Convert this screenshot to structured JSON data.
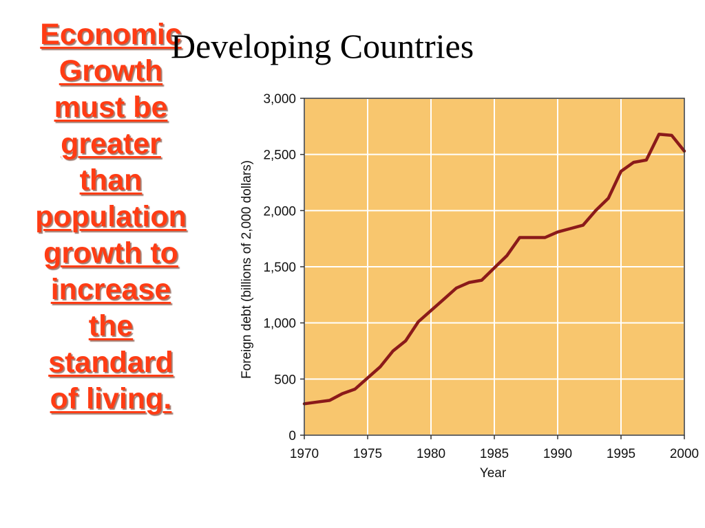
{
  "slide": {
    "title": "Developing Countries",
    "side_lines": [
      "Economic",
      "Growth",
      "must  be",
      "greater",
      "than",
      "population",
      "growth to",
      "increase",
      "the",
      "standard",
      "of living."
    ],
    "side_text_color": "#ff3c14"
  },
  "chart_data": {
    "type": "line",
    "title": "",
    "xlabel": "Year",
    "ylabel": "Foreign debt (billions of 2,000 dollars)",
    "xlim": [
      1970,
      2000
    ],
    "ylim": [
      0,
      3000
    ],
    "x_ticks": [
      1970,
      1975,
      1980,
      1985,
      1990,
      1995,
      2000
    ],
    "x_tick_labels": [
      "1970",
      "1975",
      "1980",
      "1985",
      "1990",
      "1995",
      "2000"
    ],
    "y_ticks": [
      0,
      500,
      1000,
      1500,
      2000,
      2500,
      3000
    ],
    "y_tick_labels": [
      "0",
      "500",
      "1,000",
      "1,500",
      "2,000",
      "2,500",
      "3,000"
    ],
    "grid": true,
    "background_color": "#f8c66e",
    "line_color": "#8b1a1a",
    "x": [
      1970,
      1971,
      1972,
      1973,
      1974,
      1975,
      1976,
      1977,
      1978,
      1979,
      1980,
      1981,
      1982,
      1983,
      1984,
      1985,
      1986,
      1987,
      1988,
      1989,
      1990,
      1991,
      1992,
      1993,
      1994,
      1995,
      1996,
      1997,
      1998,
      1999,
      2000
    ],
    "values": [
      280,
      295,
      310,
      370,
      410,
      510,
      610,
      750,
      840,
      1010,
      1110,
      1210,
      1310,
      1360,
      1380,
      1490,
      1600,
      1760,
      1760,
      1760,
      1810,
      1840,
      1870,
      2000,
      2110,
      2350,
      2430,
      2450,
      2680,
      2670,
      2530
    ]
  }
}
